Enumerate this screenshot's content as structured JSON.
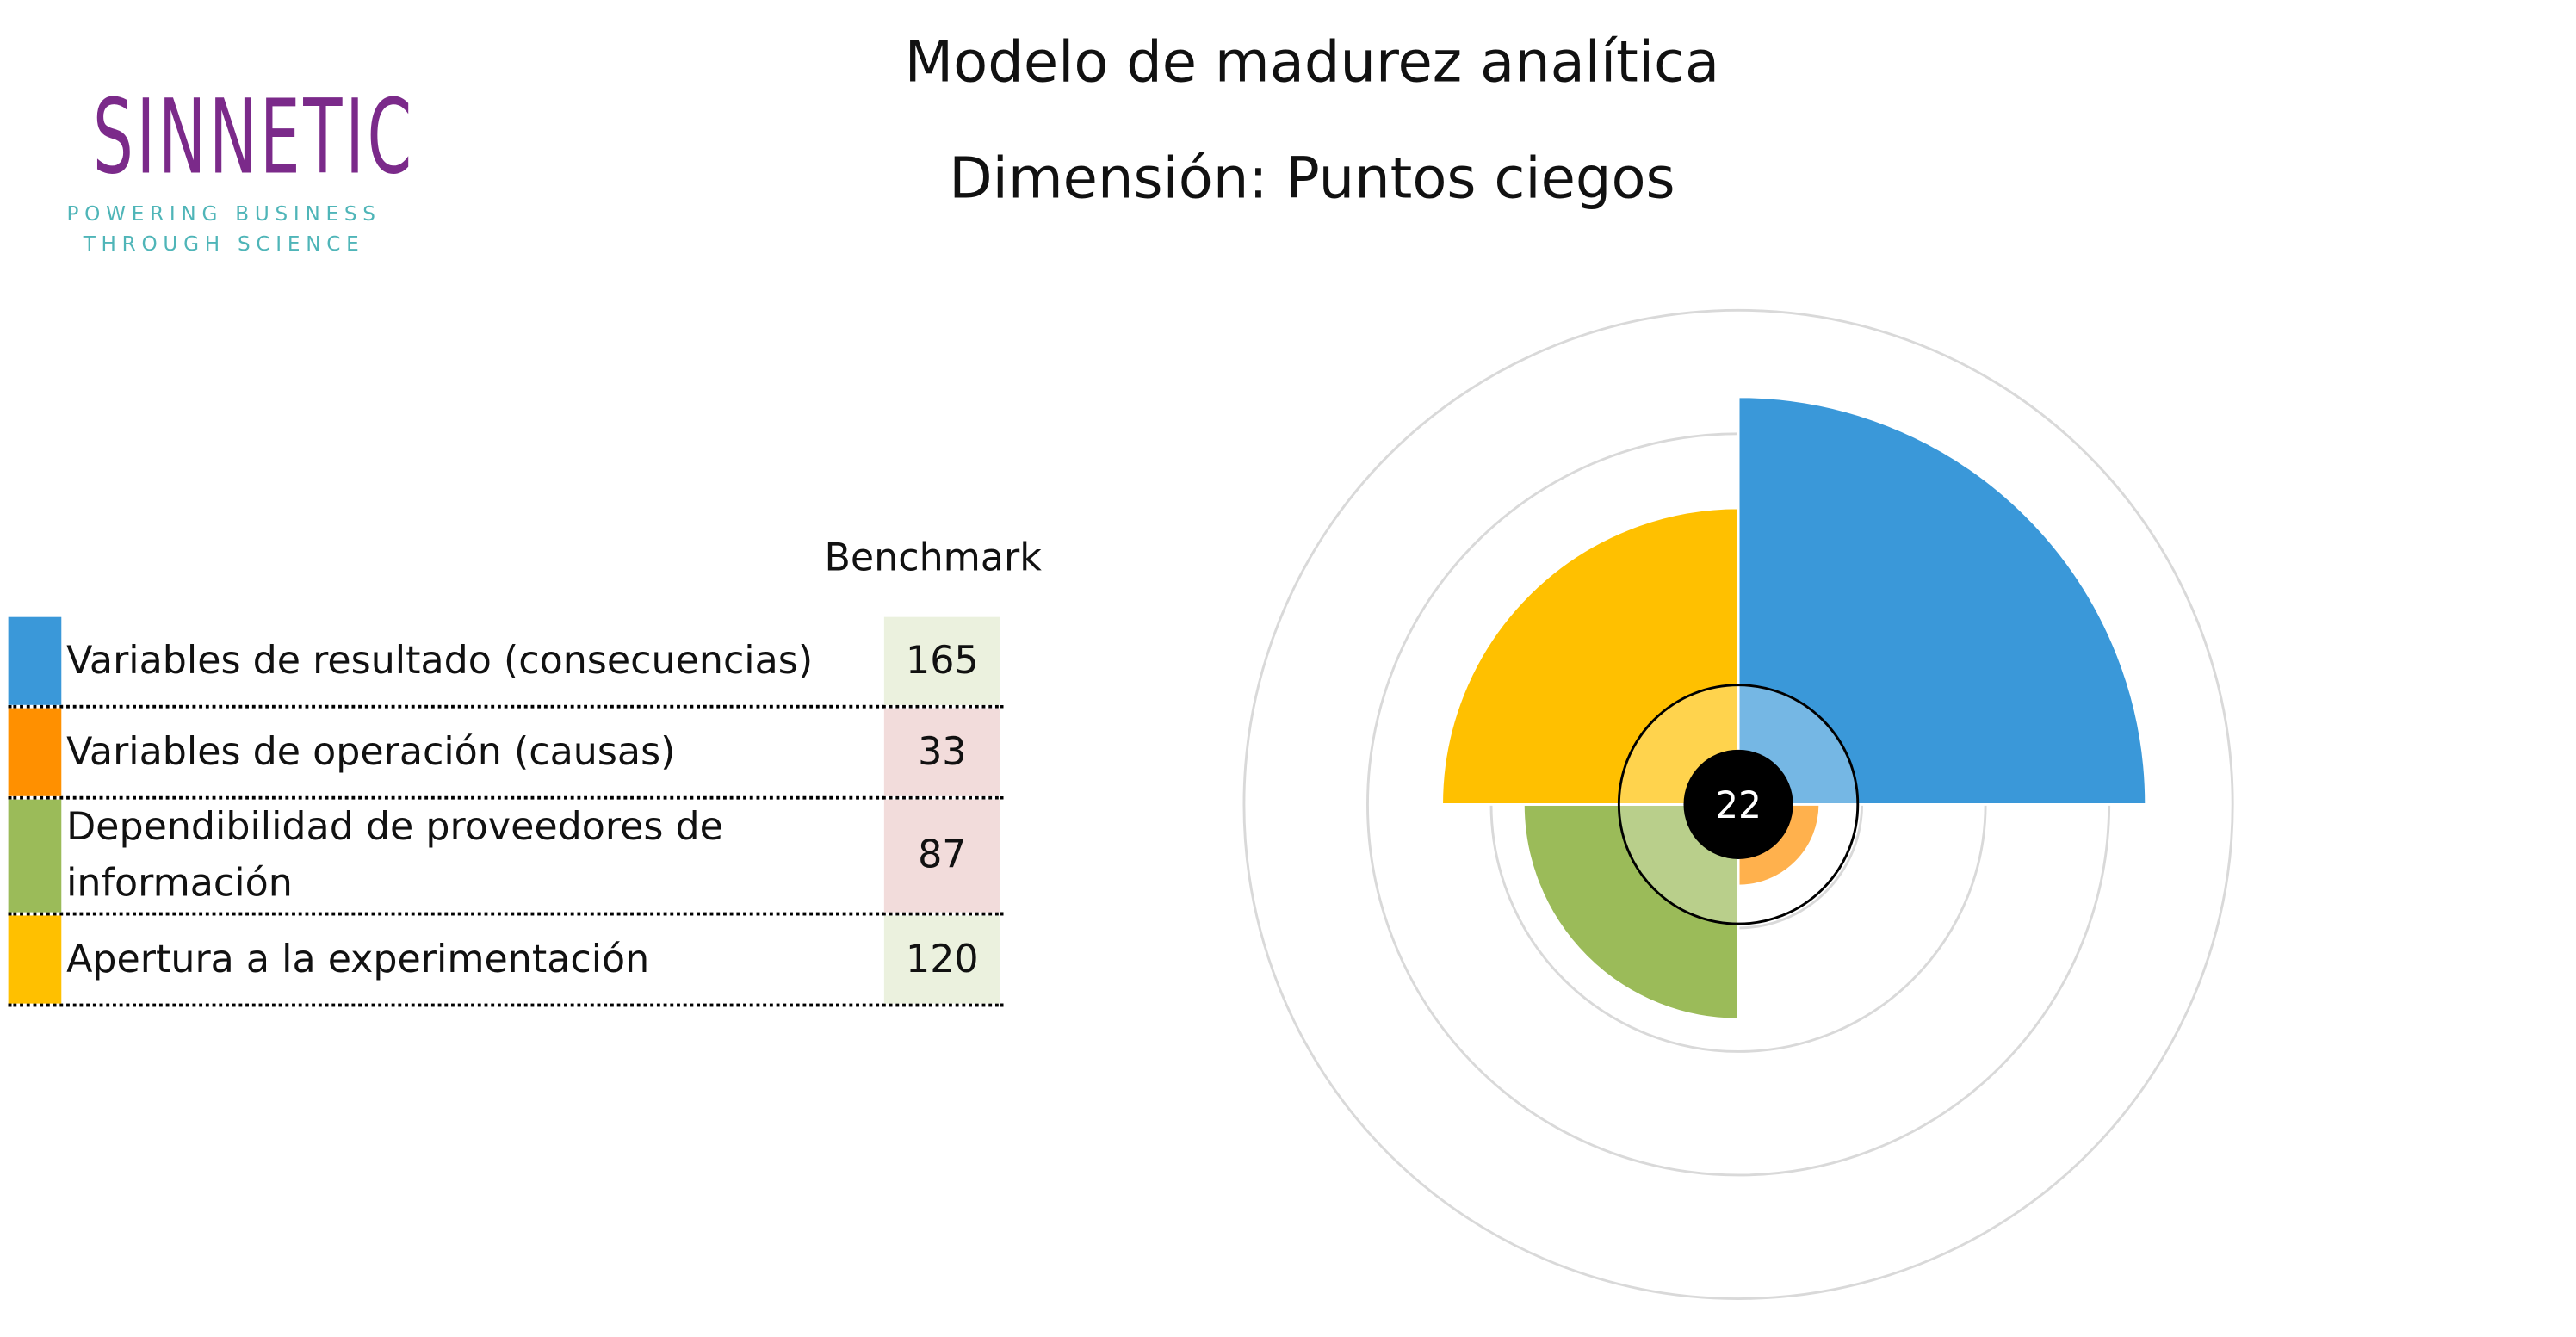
{
  "logo": {
    "name": "SINNETIC",
    "tagline": [
      "POWERING BUSINESS",
      "THROUGH SCIENCE"
    ]
  },
  "chart_data": {
    "type": "polar_area",
    "title": "Modelo de madurez analítica",
    "subtitle": "Dimensión: Puntos ciegos",
    "table_header": "Benchmark",
    "categories": [
      "Variables de resultado (consecuencias)",
      "Variables de operación (causas)",
      "Dependibilidad de proveedores de información",
      "Apertura a la experimentación"
    ],
    "values": [
      165,
      33,
      87,
      120
    ],
    "colors": [
      "#3a98d9",
      "#ff9000",
      "#9bbb59",
      "#ffc000"
    ],
    "benchmark_colors": [
      "#ebf1de",
      "#f2dcdb",
      "#f2dcdb",
      "#ebf1de"
    ],
    "rlim": [
      0,
      200
    ],
    "rticks": [
      50,
      100,
      150,
      200
    ],
    "center_label": "22"
  }
}
